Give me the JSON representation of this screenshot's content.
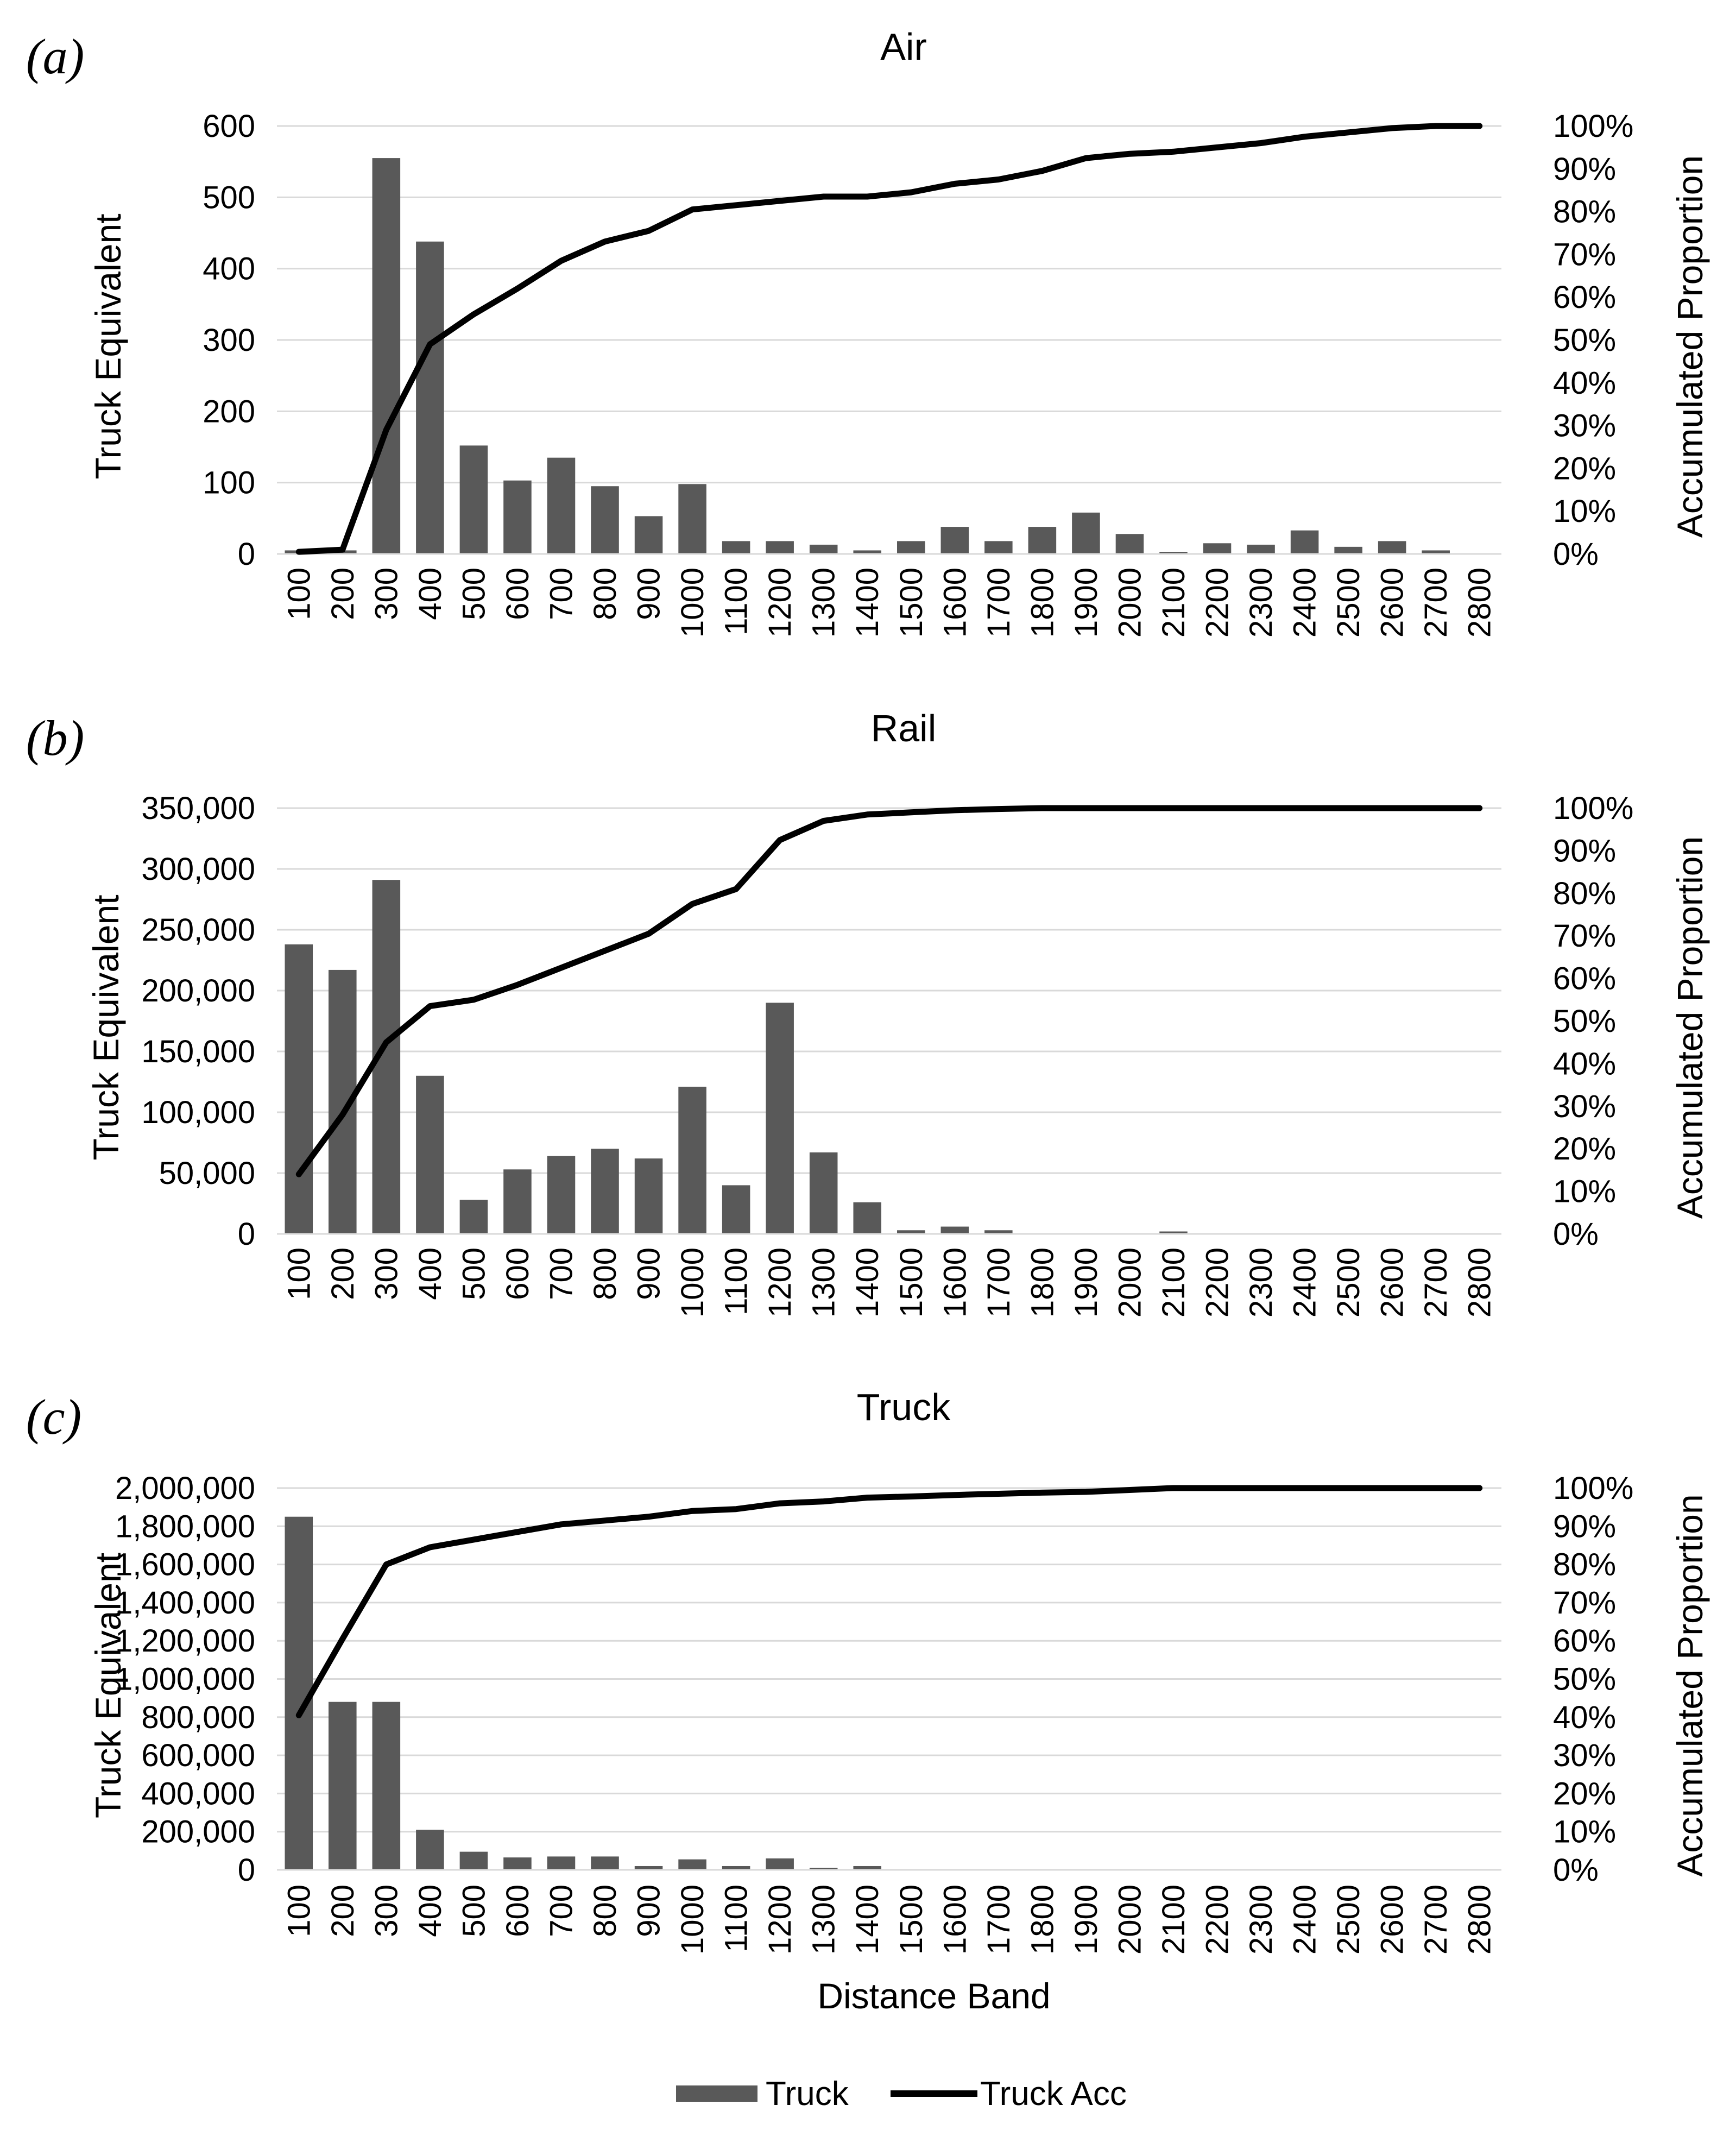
{
  "colors": {
    "bar": "#595959",
    "line": "#000000",
    "grid": "#d9d9d9",
    "text": "#000000",
    "background": "#ffffff"
  },
  "legend": {
    "bar_label": "Truck",
    "line_label": "Truck Acc",
    "position": "bottom-center"
  },
  "x_axis_title": "Distance Band",
  "chart_data": [
    {
      "panel": "(a)",
      "type": "bar",
      "title": "Air",
      "ylabel": "Truck Equivalent",
      "y2label": "Accumulated Proportion",
      "ylim": [
        0,
        600
      ],
      "y_ticks": [
        "0",
        "100",
        "200",
        "300",
        "400",
        "500",
        "600"
      ],
      "y2lim": [
        0,
        100
      ],
      "y2_ticks": [
        "0%",
        "10%",
        "20%",
        "30%",
        "40%",
        "50%",
        "60%",
        "70%",
        "80%",
        "90%",
        "100%"
      ],
      "grid": true,
      "categories": [
        "100",
        "200",
        "300",
        "400",
        "500",
        "600",
        "700",
        "800",
        "900",
        "1000",
        "1100",
        "1200",
        "1300",
        "1400",
        "1500",
        "1600",
        "1700",
        "1800",
        "1900",
        "2000",
        "2100",
        "2200",
        "2300",
        "2400",
        "2500",
        "2600",
        "2700",
        "2800"
      ],
      "series": [
        {
          "name": "Truck",
          "kind": "bar",
          "axis": "left",
          "values": [
            5,
            5,
            555,
            438,
            152,
            103,
            135,
            95,
            53,
            98,
            18,
            18,
            13,
            5,
            18,
            38,
            18,
            38,
            58,
            28,
            3,
            15,
            13,
            33,
            10,
            18,
            5,
            0
          ]
        },
        {
          "name": "Truck Acc",
          "kind": "line",
          "axis": "right",
          "values": [
            0.5,
            1,
            29,
            49,
            56,
            62,
            68.5,
            73,
            75.5,
            80.5,
            81.5,
            82.5,
            83.5,
            83.5,
            84.5,
            86.5,
            87.5,
            89.5,
            92.5,
            93.5,
            94,
            95,
            96,
            97.5,
            98.5,
            99.5,
            100,
            100
          ]
        }
      ]
    },
    {
      "panel": "(b)",
      "type": "bar",
      "title": "Rail",
      "ylabel": "Truck Equivalent",
      "y2label": "Accumulated Proportion",
      "ylim": [
        0,
        350000
      ],
      "y_ticks": [
        "0",
        "50,000",
        "100,000",
        "150,000",
        "200,000",
        "250,000",
        "300,000",
        "350,000"
      ],
      "y2lim": [
        0,
        100
      ],
      "y2_ticks": [
        "0%",
        "10%",
        "20%",
        "30%",
        "40%",
        "50%",
        "60%",
        "70%",
        "80%",
        "90%",
        "100%"
      ],
      "grid": true,
      "categories": [
        "100",
        "200",
        "300",
        "400",
        "500",
        "600",
        "700",
        "800",
        "900",
        "1000",
        "1100",
        "1200",
        "1300",
        "1400",
        "1500",
        "1600",
        "1700",
        "1800",
        "1900",
        "2000",
        "2100",
        "2200",
        "2300",
        "2400",
        "2500",
        "2600",
        "2700",
        "2800"
      ],
      "series": [
        {
          "name": "Truck",
          "kind": "bar",
          "axis": "left",
          "values": [
            238000,
            217000,
            291000,
            130000,
            28000,
            53000,
            64000,
            70000,
            62000,
            121000,
            40000,
            190000,
            67000,
            26000,
            3000,
            6000,
            3000,
            0,
            0,
            0,
            2000,
            0,
            0,
            0,
            0,
            0,
            0,
            0
          ]
        },
        {
          "name": "Truck Acc",
          "kind": "line",
          "axis": "right",
          "values": [
            14,
            28,
            45,
            53.5,
            55,
            58.5,
            62.5,
            66.5,
            70.5,
            77.5,
            81,
            92.5,
            97,
            98.5,
            99,
            99.5,
            99.8,
            100,
            100,
            100,
            100,
            100,
            100,
            100,
            100,
            100,
            100,
            100
          ]
        }
      ]
    },
    {
      "panel": "(c)",
      "type": "bar",
      "title": "Truck",
      "ylabel": "Truck Equivalent",
      "y2label": "Accumulated Proportion",
      "xlabel": "Distance Band",
      "ylim": [
        0,
        2000000
      ],
      "y_ticks": [
        "0",
        "200,000",
        "400,000",
        "600,000",
        "800,000",
        "1,000,000",
        "1,200,000",
        "1,400,000",
        "1,600,000",
        "1,800,000",
        "2,000,000"
      ],
      "y2lim": [
        0,
        100
      ],
      "y2_ticks": [
        "0%",
        "10%",
        "20%",
        "30%",
        "40%",
        "50%",
        "60%",
        "70%",
        "80%",
        "90%",
        "100%"
      ],
      "grid": true,
      "categories": [
        "100",
        "200",
        "300",
        "400",
        "500",
        "600",
        "700",
        "800",
        "900",
        "1000",
        "1100",
        "1200",
        "1300",
        "1400",
        "1500",
        "1600",
        "1700",
        "1800",
        "1900",
        "2000",
        "2100",
        "2200",
        "2300",
        "2400",
        "2500",
        "2600",
        "2700",
        "2800"
      ],
      "series": [
        {
          "name": "Truck",
          "kind": "bar",
          "axis": "left",
          "values": [
            1850000,
            880000,
            880000,
            210000,
            95000,
            65000,
            70000,
            70000,
            20000,
            55000,
            20000,
            60000,
            10000,
            20000,
            0,
            0,
            0,
            0,
            0,
            0,
            0,
            0,
            0,
            0,
            0,
            0,
            0,
            0
          ]
        },
        {
          "name": "Truck Acc",
          "kind": "line",
          "axis": "right",
          "values": [
            40.5,
            60.5,
            80,
            84.5,
            86.5,
            88.5,
            90.5,
            91.5,
            92.5,
            94,
            94.5,
            96,
            96.5,
            97.5,
            97.8,
            98.2,
            98.5,
            98.8,
            99,
            99.5,
            100,
            100,
            100,
            100,
            100,
            100,
            100,
            100
          ]
        }
      ]
    }
  ]
}
